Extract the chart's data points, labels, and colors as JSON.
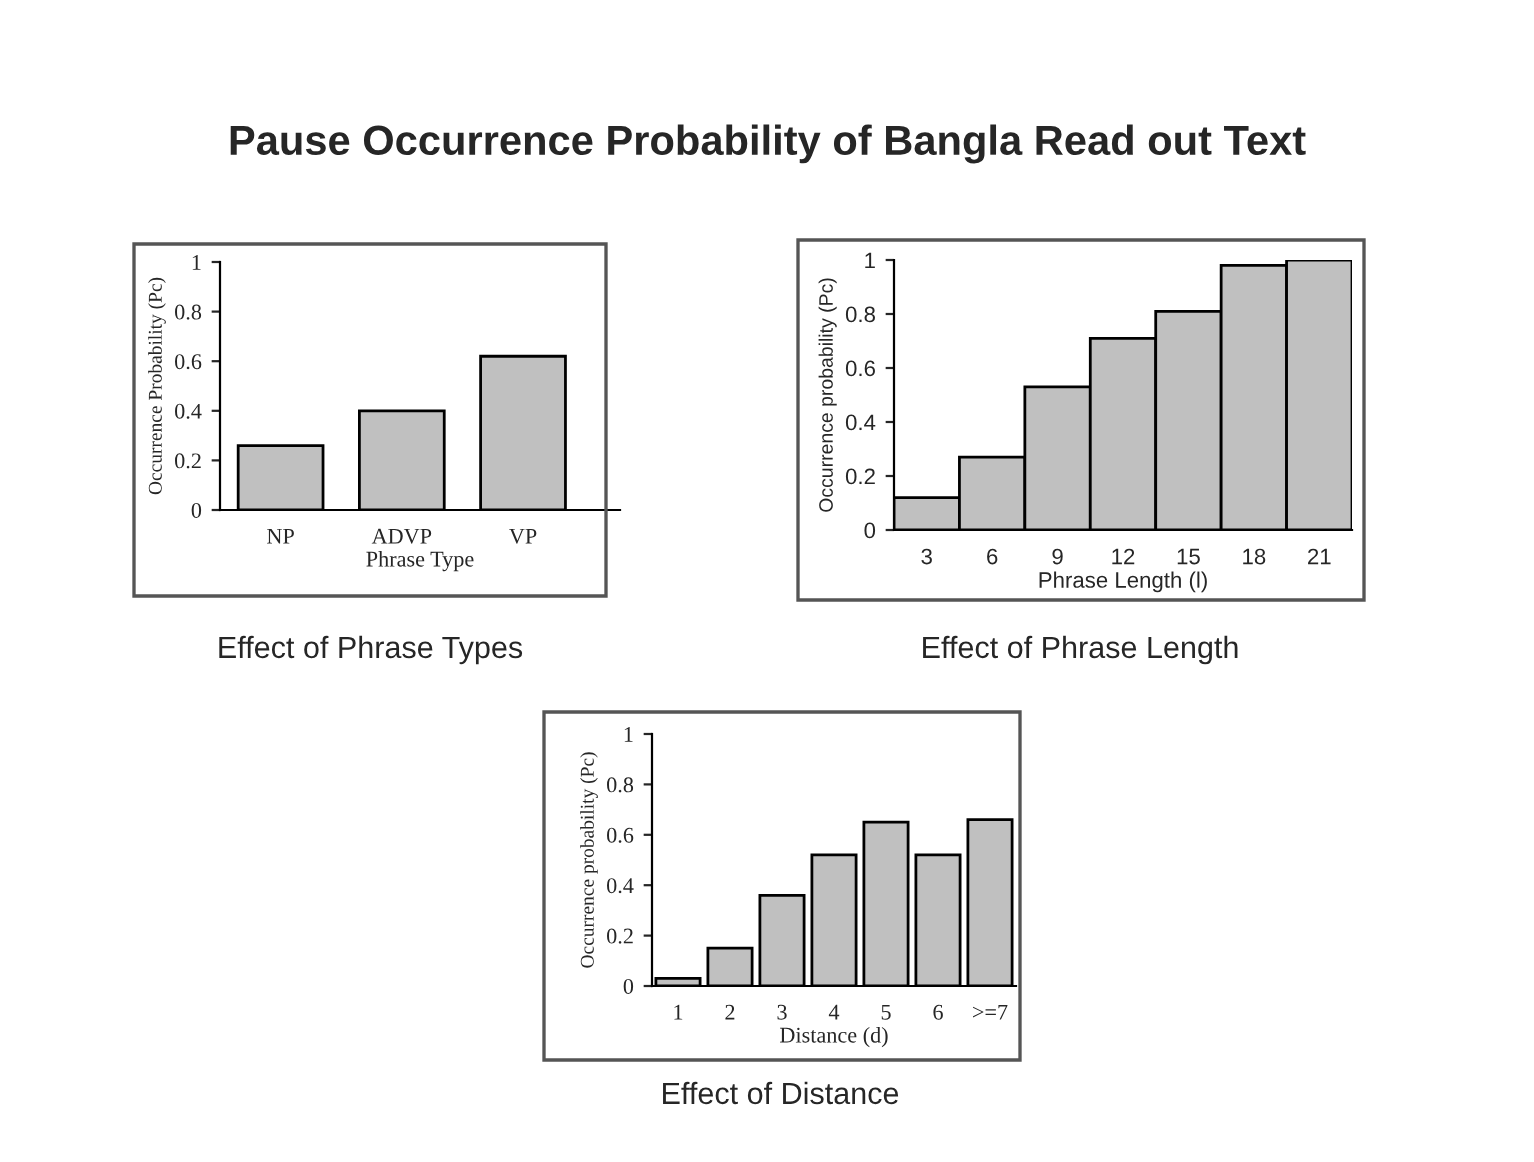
{
  "chart_data": [
    {
      "type": "bar",
      "title": "Pause Occurrence Probability of Bangla Read out Text",
      "categories": [
        "NP",
        "ADVP",
        "VP"
      ],
      "values": [
        0.26,
        0.4,
        0.62
      ],
      "color": "#c0c0c0",
      "xlabel": "Phrase Type",
      "ylabel": "Occurrence Probability (Pc)",
      "ylim": [
        0,
        1
      ],
      "yticks": [
        0,
        0.2,
        0.4,
        0.6,
        0.8,
        1
      ],
      "grid": false,
      "legend": false,
      "annotations": [
        "Effect of Phrase Types"
      ]
    },
    {
      "type": "bar",
      "categories": [
        "3",
        "6",
        "9",
        "12",
        "15",
        "18",
        "21"
      ],
      "values": [
        0.12,
        0.27,
        0.53,
        0.71,
        0.81,
        0.98,
        1.0
      ],
      "color": "#c0c0c0",
      "xlabel": "Phrase Length (l)",
      "ylabel": "Occurrence probability (Pc)",
      "ylim": [
        0,
        1
      ],
      "yticks": [
        0,
        0.2,
        0.4,
        0.6,
        0.8,
        1
      ],
      "grid": false,
      "legend": false,
      "annotations": [
        "Effect of Phrase Length"
      ]
    },
    {
      "type": "bar",
      "categories": [
        "1",
        "2",
        "3",
        "4",
        "5",
        "6",
        ">=7"
      ],
      "values": [
        0.03,
        0.15,
        0.36,
        0.52,
        0.65,
        0.52,
        0.66
      ],
      "color": "#c0c0c0",
      "xlabel": "Distance (d)",
      "ylabel": "Occurrence probability (Pc)",
      "ylim": [
        0,
        1
      ],
      "yticks": [
        0,
        0.2,
        0.4,
        0.6,
        0.8,
        1
      ],
      "grid": false,
      "legend": false,
      "annotations": [
        "Effect of Distance"
      ]
    }
  ]
}
